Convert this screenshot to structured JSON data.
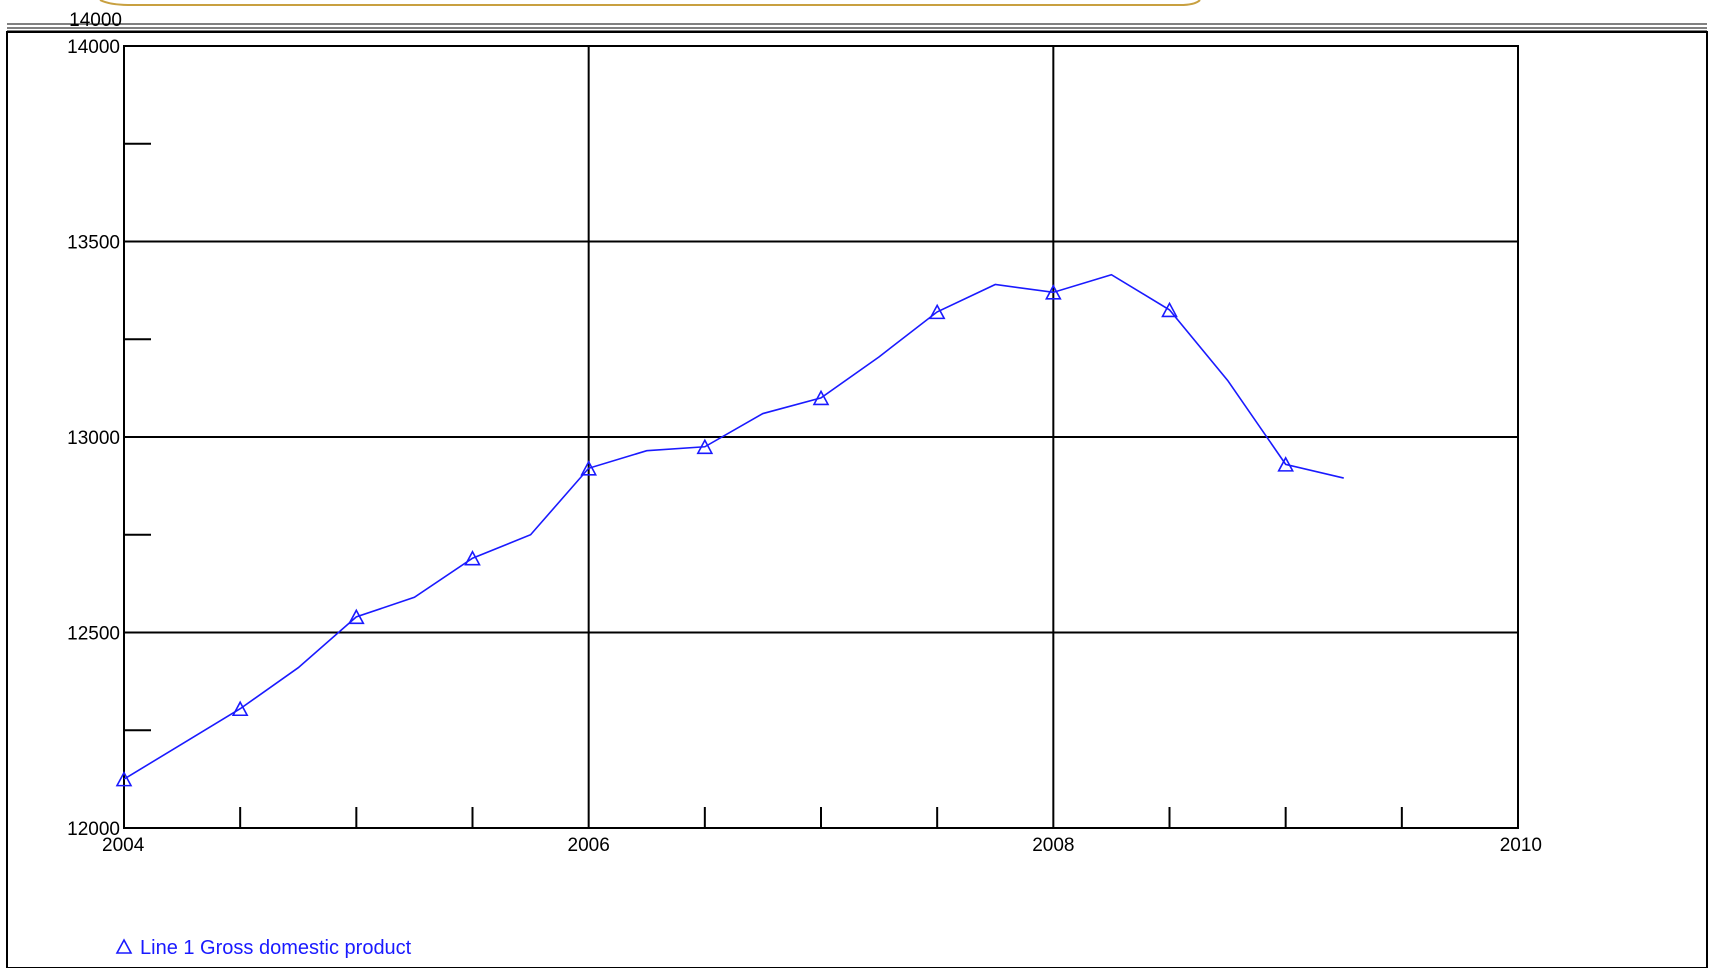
{
  "chart_data": {
    "type": "line",
    "title": "",
    "xlabel": "",
    "ylabel": "",
    "xlim": [
      2004,
      2010
    ],
    "ylim": [
      12000,
      14000
    ],
    "x_ticks": [
      2004,
      2006,
      2008,
      2010
    ],
    "y_ticks": [
      12000,
      12500,
      13000,
      13500,
      14000
    ],
    "x_tick_labels": [
      "2004",
      "2006",
      "2008",
      "2010"
    ],
    "y_tick_labels": [
      "12000",
      "12500",
      "13000",
      "13500",
      "14000"
    ],
    "grid": true,
    "legend_placement": "bottom-left",
    "series": [
      {
        "name": "Line 1  Gross domestic product",
        "marker": "triangle",
        "color": "#1a1aff",
        "x": [
          2004.0,
          2004.25,
          2004.5,
          2004.75,
          2005.0,
          2005.25,
          2005.5,
          2005.75,
          2006.0,
          2006.25,
          2006.5,
          2006.75,
          2007.0,
          2007.25,
          2007.5,
          2007.75,
          2008.0,
          2008.25,
          2008.5,
          2008.75,
          2009.0,
          2009.25
        ],
        "values": [
          12125,
          12215,
          12305,
          12410,
          12540,
          12590,
          12690,
          12750,
          12920,
          12965,
          12975,
          13060,
          13100,
          13205,
          13320,
          13390,
          13370,
          13415,
          13325,
          13145,
          12930,
          12895
        ]
      }
    ]
  }
}
